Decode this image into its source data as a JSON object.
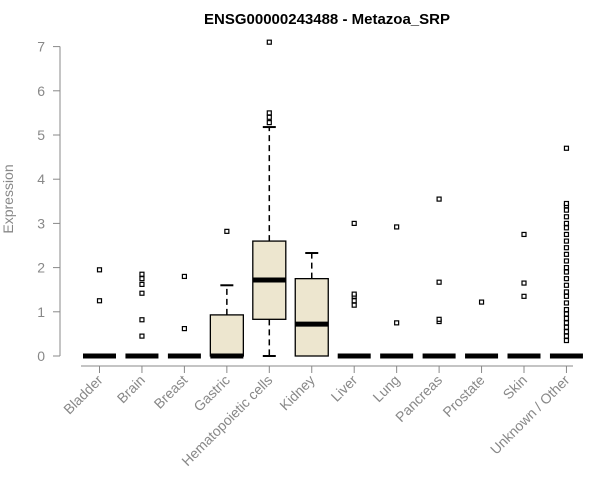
{
  "chart_data": {
    "type": "boxplot",
    "title": "ENSG00000243488 - Metazoa_SRP",
    "xlabel": "",
    "ylabel": "Expression",
    "ylim": [
      0,
      7
    ],
    "yticks": [
      "0",
      "1",
      "2",
      "3",
      "4",
      "5",
      "6",
      "7"
    ],
    "grid": false,
    "box_fill": "#ede6cf",
    "categories": [
      "Bladder",
      "Brain",
      "Breast",
      "Gastric",
      "Hematopoietic cells",
      "Kidney",
      "Liver",
      "Lung",
      "Pancreas",
      "Prostate",
      "Skin",
      "Unknown / Other"
    ],
    "boxes": [
      {
        "category": "Bladder",
        "min": 0,
        "q1": 0,
        "median": 0,
        "q3": 0,
        "max": 0,
        "outliers": [
          1.25,
          1.95
        ]
      },
      {
        "category": "Brain",
        "min": 0,
        "q1": 0,
        "median": 0,
        "q3": 0,
        "max": 0,
        "outliers": [
          0.45,
          0.82,
          1.42,
          1.62,
          1.75,
          1.85
        ]
      },
      {
        "category": "Breast",
        "min": 0,
        "q1": 0,
        "median": 0,
        "q3": 0,
        "max": 0,
        "outliers": [
          0.62,
          1.8
        ]
      },
      {
        "category": "Gastric",
        "min": 0,
        "q1": 0,
        "median": 0,
        "q3": 0.93,
        "max": 1.6,
        "outliers": [
          2.82
        ]
      },
      {
        "category": "Hematopoietic cells",
        "min": 0,
        "q1": 0.83,
        "median": 1.72,
        "q3": 2.6,
        "max": 5.18,
        "outliers": [
          5.28,
          5.4,
          5.5,
          7.1
        ]
      },
      {
        "category": "Kidney",
        "min": 0,
        "q1": 0,
        "median": 0.72,
        "q3": 1.75,
        "max": 2.33,
        "outliers": []
      },
      {
        "category": "Liver",
        "min": 0,
        "q1": 0,
        "median": 0,
        "q3": 0,
        "max": 0,
        "outliers": [
          1.15,
          1.25,
          1.35,
          1.4,
          3.0
        ]
      },
      {
        "category": "Lung",
        "min": 0,
        "q1": 0,
        "median": 0,
        "q3": 0,
        "max": 0,
        "outliers": [
          0.75,
          2.92
        ]
      },
      {
        "category": "Pancreas",
        "min": 0,
        "q1": 0,
        "median": 0,
        "q3": 0,
        "max": 0,
        "outliers": [
          0.78,
          0.83,
          1.67,
          3.55
        ]
      },
      {
        "category": "Prostate",
        "min": 0,
        "q1": 0,
        "median": 0,
        "q3": 0,
        "max": 0,
        "outliers": [
          1.22
        ]
      },
      {
        "category": "Skin",
        "min": 0,
        "q1": 0,
        "median": 0,
        "q3": 0,
        "max": 0,
        "outliers": [
          1.35,
          1.65,
          2.75
        ]
      },
      {
        "category": "Unknown / Other",
        "min": 0,
        "q1": 0,
        "median": 0,
        "q3": 0,
        "max": 0,
        "outliers": [
          0.35,
          0.45,
          0.55,
          0.65,
          0.75,
          0.85,
          0.95,
          1.05,
          1.2,
          1.35,
          1.45,
          1.6,
          1.75,
          1.9,
          2.0,
          2.15,
          2.3,
          2.45,
          2.6,
          2.75,
          2.9,
          3.0,
          3.15,
          3.3,
          3.4,
          3.45,
          4.7
        ]
      }
    ]
  }
}
